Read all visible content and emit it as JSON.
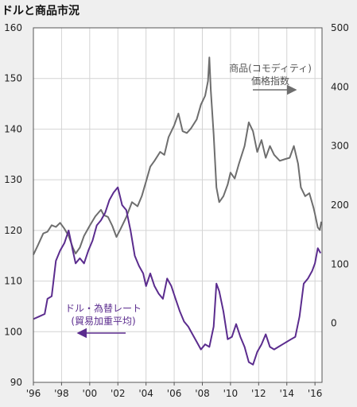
{
  "chart_data": {
    "type": "line",
    "title": "ドルと商品市況",
    "x_range": [
      1996,
      2016.5
    ],
    "left_axis": {
      "min": 90,
      "max": 160,
      "ticks": [
        90,
        100,
        110,
        120,
        130,
        140,
        150,
        160
      ]
    },
    "right_axis": {
      "min": -100,
      "max": 500,
      "ticks": [
        0,
        100,
        200,
        300,
        400,
        500
      ]
    },
    "x_ticks": [
      {
        "value": 1996,
        "label": "'96"
      },
      {
        "value": 1998,
        "label": "'98"
      },
      {
        "value": 2000,
        "label": "'00"
      },
      {
        "value": 2002,
        "label": "'02"
      },
      {
        "value": 2004,
        "label": "'04"
      },
      {
        "value": 2006,
        "label": "'06"
      },
      {
        "value": 2008,
        "label": "'08"
      },
      {
        "value": 2010,
        "label": "'10"
      },
      {
        "value": 2012,
        "label": "'12"
      },
      {
        "value": 2014,
        "label": "'14"
      },
      {
        "value": 2016,
        "label": "'16"
      }
    ],
    "grid": true,
    "series": [
      {
        "name": "商品(コモディティ)価格指数",
        "axis": "right",
        "color": "#6e6e6e",
        "points": [
          [
            1996.0,
            116
          ],
          [
            1996.3,
            131
          ],
          [
            1996.7,
            152
          ],
          [
            1997.0,
            155
          ],
          [
            1997.3,
            166
          ],
          [
            1997.6,
            163
          ],
          [
            1997.9,
            170
          ],
          [
            1998.2,
            160
          ],
          [
            1998.5,
            148
          ],
          [
            1998.8,
            128
          ],
          [
            1999.0,
            118
          ],
          [
            1999.3,
            128
          ],
          [
            1999.6,
            148
          ],
          [
            2000.0,
            165
          ],
          [
            2000.4,
            181
          ],
          [
            2000.8,
            192
          ],
          [
            2001.0,
            183
          ],
          [
            2001.3,
            180
          ],
          [
            2001.6,
            165
          ],
          [
            2001.9,
            146
          ],
          [
            2002.2,
            160
          ],
          [
            2002.6,
            180
          ],
          [
            2003.0,
            205
          ],
          [
            2003.4,
            198
          ],
          [
            2003.7,
            215
          ],
          [
            2004.0,
            240
          ],
          [
            2004.3,
            265
          ],
          [
            2004.6,
            275
          ],
          [
            2005.0,
            290
          ],
          [
            2005.3,
            285
          ],
          [
            2005.6,
            315
          ],
          [
            2006.0,
            335
          ],
          [
            2006.3,
            355
          ],
          [
            2006.6,
            325
          ],
          [
            2006.9,
            322
          ],
          [
            2007.2,
            330
          ],
          [
            2007.6,
            345
          ],
          [
            2007.9,
            370
          ],
          [
            2008.2,
            385
          ],
          [
            2008.4,
            410
          ],
          [
            2008.5,
            450
          ],
          [
            2008.6,
            395
          ],
          [
            2008.8,
            320
          ],
          [
            2009.0,
            230
          ],
          [
            2009.2,
            205
          ],
          [
            2009.5,
            215
          ],
          [
            2009.8,
            235
          ],
          [
            2010.0,
            255
          ],
          [
            2010.3,
            245
          ],
          [
            2010.6,
            270
          ],
          [
            2011.0,
            300
          ],
          [
            2011.3,
            340
          ],
          [
            2011.6,
            325
          ],
          [
            2011.9,
            290
          ],
          [
            2012.2,
            310
          ],
          [
            2012.5,
            280
          ],
          [
            2012.8,
            300
          ],
          [
            2013.1,
            285
          ],
          [
            2013.5,
            275
          ],
          [
            2013.9,
            278
          ],
          [
            2014.2,
            280
          ],
          [
            2014.5,
            300
          ],
          [
            2014.8,
            270
          ],
          [
            2015.0,
            230
          ],
          [
            2015.3,
            215
          ],
          [
            2015.6,
            220
          ],
          [
            2015.9,
            195
          ],
          [
            2016.0,
            185
          ],
          [
            2016.2,
            162
          ],
          [
            2016.35,
            158
          ],
          [
            2016.45,
            172
          ]
        ]
      },
      {
        "name": "ドル・為替レート(貿易加重平均)",
        "axis": "left",
        "color": "#5b2c8e",
        "points": [
          [
            1996.0,
            102.5
          ],
          [
            1996.4,
            103.0
          ],
          [
            1996.8,
            103.5
          ],
          [
            1997.0,
            106.5
          ],
          [
            1997.3,
            107.0
          ],
          [
            1997.6,
            114.0
          ],
          [
            1997.9,
            116.0
          ],
          [
            1998.2,
            117.5
          ],
          [
            1998.5,
            120.0
          ],
          [
            1998.8,
            116.0
          ],
          [
            1999.0,
            113.5
          ],
          [
            1999.3,
            114.5
          ],
          [
            1999.6,
            113.5
          ],
          [
            1999.9,
            116.0
          ],
          [
            2000.2,
            118.0
          ],
          [
            2000.5,
            121.0
          ],
          [
            2000.8,
            122.0
          ],
          [
            2001.1,
            123.5
          ],
          [
            2001.4,
            126.0
          ],
          [
            2001.7,
            127.5
          ],
          [
            2002.0,
            128.5
          ],
          [
            2002.3,
            125.0
          ],
          [
            2002.6,
            124.0
          ],
          [
            2002.9,
            120.0
          ],
          [
            2003.2,
            115.0
          ],
          [
            2003.5,
            113.0
          ],
          [
            2003.8,
            111.5
          ],
          [
            2004.0,
            109.0
          ],
          [
            2004.3,
            111.5
          ],
          [
            2004.6,
            109.0
          ],
          [
            2004.9,
            107.5
          ],
          [
            2005.2,
            106.5
          ],
          [
            2005.5,
            110.5
          ],
          [
            2005.8,
            109.0
          ],
          [
            2006.1,
            106.5
          ],
          [
            2006.4,
            104.0
          ],
          [
            2006.7,
            102.0
          ],
          [
            2007.0,
            101.0
          ],
          [
            2007.3,
            99.5
          ],
          [
            2007.6,
            98.0
          ],
          [
            2007.9,
            96.5
          ],
          [
            2008.2,
            97.5
          ],
          [
            2008.5,
            97.0
          ],
          [
            2008.8,
            101.0
          ],
          [
            2009.0,
            109.5
          ],
          [
            2009.2,
            108.0
          ],
          [
            2009.5,
            104.0
          ],
          [
            2009.8,
            98.5
          ],
          [
            2010.1,
            99.0
          ],
          [
            2010.4,
            101.5
          ],
          [
            2010.7,
            99.0
          ],
          [
            2011.0,
            97.0
          ],
          [
            2011.3,
            94.0
          ],
          [
            2011.6,
            93.5
          ],
          [
            2011.9,
            96.0
          ],
          [
            2012.2,
            97.5
          ],
          [
            2012.5,
            99.5
          ],
          [
            2012.8,
            97.0
          ],
          [
            2013.1,
            96.5
          ],
          [
            2013.4,
            97.0
          ],
          [
            2013.7,
            97.5
          ],
          [
            2014.0,
            98.0
          ],
          [
            2014.3,
            98.5
          ],
          [
            2014.6,
            99.0
          ],
          [
            2014.9,
            103.0
          ],
          [
            2015.2,
            109.5
          ],
          [
            2015.5,
            110.5
          ],
          [
            2015.8,
            112.0
          ],
          [
            2016.0,
            113.5
          ],
          [
            2016.2,
            116.5
          ],
          [
            2016.4,
            115.5
          ]
        ]
      }
    ],
    "annotations": [
      {
        "lines": [
          "商品(コモディティ)",
          "価格指数"
        ],
        "series": 0,
        "arrow": "right"
      },
      {
        "lines": [
          "ドル・為替レート",
          "(貿易加重平均)"
        ],
        "series": 1,
        "arrow": "left"
      }
    ]
  }
}
